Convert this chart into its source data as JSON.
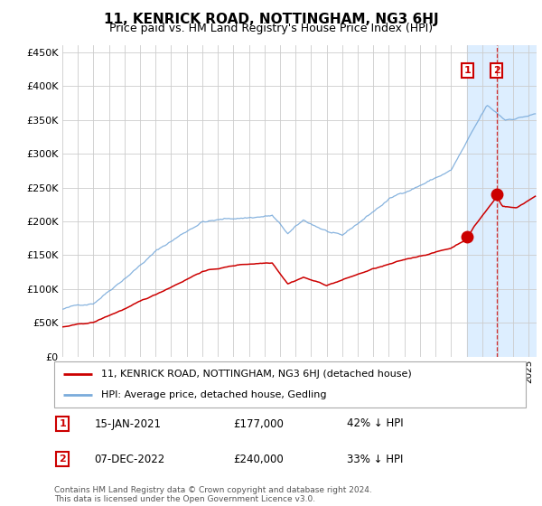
{
  "title": "11, KENRICK ROAD, NOTTINGHAM, NG3 6HJ",
  "subtitle": "Price paid vs. HM Land Registry's House Price Index (HPI)",
  "ytick_vals": [
    0,
    50000,
    100000,
    150000,
    200000,
    250000,
    300000,
    350000,
    400000,
    450000
  ],
  "ylim": [
    0,
    460000
  ],
  "xlim_start": 1995.0,
  "xlim_end": 2025.5,
  "legend_line1": "11, KENRICK ROAD, NOTTINGHAM, NG3 6HJ (detached house)",
  "legend_line2": "HPI: Average price, detached house, Gedling",
  "annotation1_label": "1",
  "annotation1_date": "15-JAN-2021",
  "annotation1_price": "£177,000",
  "annotation1_hpi": "42% ↓ HPI",
  "annotation2_label": "2",
  "annotation2_date": "07-DEC-2022",
  "annotation2_price": "£240,000",
  "annotation2_hpi": "33% ↓ HPI",
  "footer": "Contains HM Land Registry data © Crown copyright and database right 2024.\nThis data is licensed under the Open Government Licence v3.0.",
  "red_color": "#cc0000",
  "blue_color": "#7aabdb",
  "highlight_bg": "#ddeeff",
  "sale1_x": 2021.04,
  "sale1_y": 177000,
  "sale2_x": 2022.92,
  "sale2_y": 240000,
  "vline_x": 2022.92,
  "highlight_start": 2021.0,
  "highlight_end": 2025.5
}
